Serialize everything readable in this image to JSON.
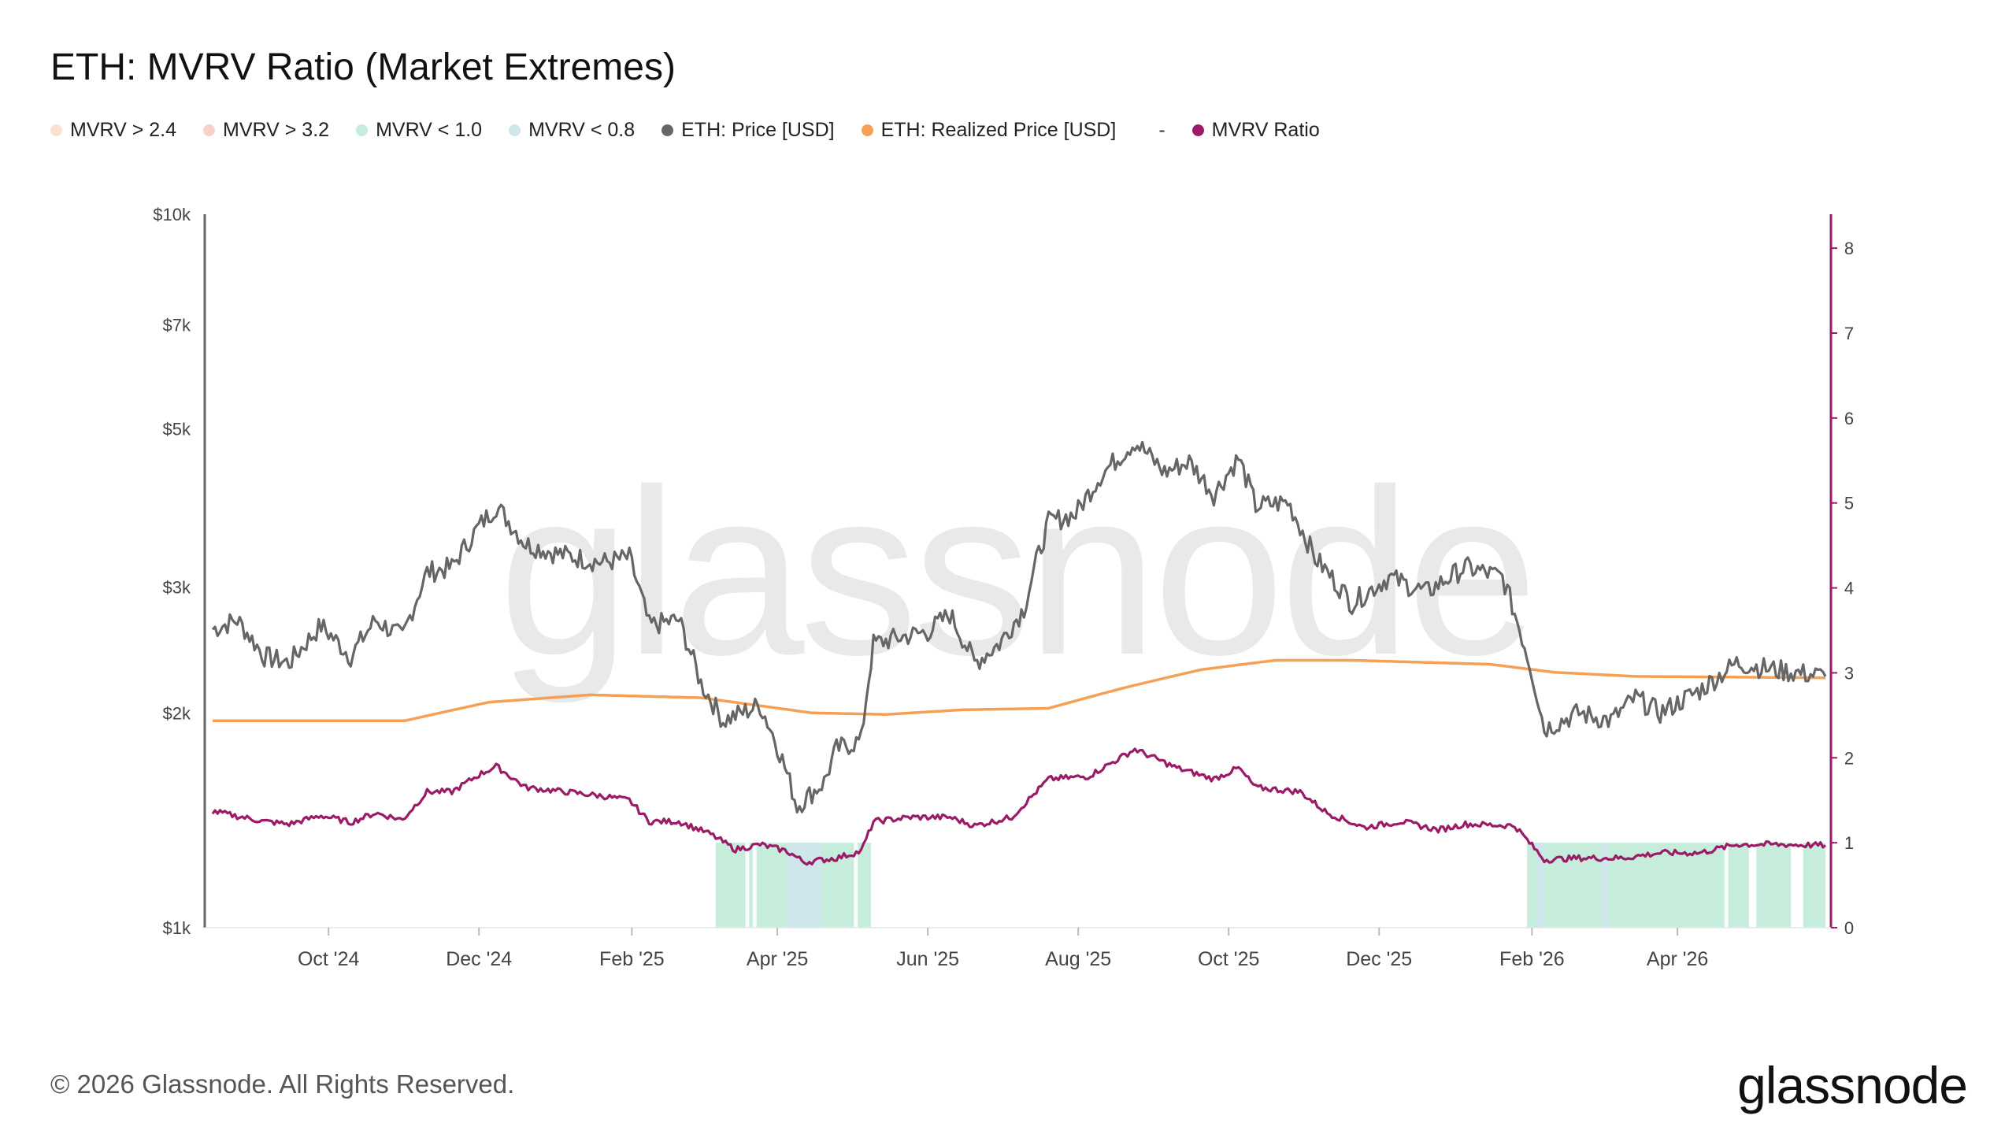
{
  "title": "ETH: MVRV Ratio (Market Extremes)",
  "footer": "© 2026 Glassnode. All Rights Reserved.",
  "brand": "glassnode",
  "watermark": "glassnode",
  "legend": [
    {
      "label": "MVRV > 2.4",
      "color": "#fbe1cf"
    },
    {
      "label": "MVRV > 3.2",
      "color": "#f8d2c8"
    },
    {
      "label": "MVRV < 1.0",
      "color": "#c6ecdc"
    },
    {
      "label": "MVRV < 0.8",
      "color": "#cfe6ea"
    },
    {
      "label": "ETH: Price [USD]",
      "color": "#666666"
    },
    {
      "label": "ETH: Realized Price [USD]",
      "color": "#f6a055"
    },
    {
      "label": "MVRV Ratio",
      "color": "#9b1b67",
      "separator": "-"
    }
  ],
  "chart_data": {
    "type": "line",
    "x_start": "2024-08-15",
    "x_end": "2026-05-31",
    "x_ticks": [
      "Oct '24",
      "Dec '24",
      "Feb '25",
      "Apr '25",
      "Jun '25",
      "Aug '25",
      "Oct '25",
      "Dec '25",
      "Feb '26",
      "Apr '26"
    ],
    "y_left": {
      "scale": "log",
      "range": [
        1000,
        10000
      ],
      "tick_labels": [
        "$1k",
        "$2k",
        "$3k",
        "$5k",
        "$7k",
        "$10k"
      ],
      "tick_values": [
        1000,
        2000,
        3000,
        5000,
        7000,
        10000
      ]
    },
    "y_right": {
      "scale": "linear",
      "range": [
        0,
        8.4
      ],
      "tick_labels": [
        "0",
        "1",
        "2",
        "3",
        "4",
        "5",
        "6",
        "7",
        "8"
      ]
    },
    "series": [
      {
        "name": "ETH: Price [USD]",
        "axis": "left",
        "color": "#666666",
        "points": [
          [
            "2024-08-15",
            2620
          ],
          [
            "2024-08-25",
            2700
          ],
          [
            "2024-09-05",
            2400
          ],
          [
            "2024-09-15",
            2350
          ],
          [
            "2024-09-28",
            2650
          ],
          [
            "2024-10-10",
            2400
          ],
          [
            "2024-10-20",
            2700
          ],
          [
            "2024-10-31",
            2550
          ],
          [
            "2024-11-10",
            3150
          ],
          [
            "2024-11-20",
            3200
          ],
          [
            "2024-12-01",
            3650
          ],
          [
            "2024-12-08",
            3900
          ],
          [
            "2024-12-20",
            3450
          ],
          [
            "2025-01-01",
            3350
          ],
          [
            "2025-01-10",
            3300
          ],
          [
            "2025-01-20",
            3250
          ],
          [
            "2025-01-31",
            3300
          ],
          [
            "2025-02-08",
            2650
          ],
          [
            "2025-02-20",
            2700
          ],
          [
            "2025-03-01",
            2200
          ],
          [
            "2025-03-10",
            1950
          ],
          [
            "2025-03-25",
            2050
          ],
          [
            "2025-04-01",
            1800
          ],
          [
            "2025-04-09",
            1480
          ],
          [
            "2025-04-20",
            1600
          ],
          [
            "2025-04-25",
            1780
          ],
          [
            "2025-05-05",
            1830
          ],
          [
            "2025-05-10",
            2500
          ],
          [
            "2025-05-20",
            2550
          ],
          [
            "2025-06-01",
            2600
          ],
          [
            "2025-06-10",
            2750
          ],
          [
            "2025-06-20",
            2350
          ],
          [
            "2025-06-30",
            2500
          ],
          [
            "2025-07-10",
            2800
          ],
          [
            "2025-07-20",
            3700
          ],
          [
            "2025-07-31",
            3800
          ],
          [
            "2025-08-10",
            4300
          ],
          [
            "2025-08-24",
            4800
          ],
          [
            "2025-09-05",
            4350
          ],
          [
            "2025-09-15",
            4500
          ],
          [
            "2025-09-25",
            4050
          ],
          [
            "2025-10-05",
            4550
          ],
          [
            "2025-10-12",
            3900
          ],
          [
            "2025-10-25",
            3950
          ],
          [
            "2025-11-05",
            3300
          ],
          [
            "2025-11-20",
            2850
          ],
          [
            "2025-12-05",
            3100
          ],
          [
            "2025-12-20",
            2950
          ],
          [
            "2026-01-05",
            3200
          ],
          [
            "2026-01-20",
            3100
          ],
          [
            "2026-01-31",
            2350
          ],
          [
            "2026-02-06",
            1900
          ],
          [
            "2026-02-20",
            2000
          ],
          [
            "2026-03-05",
            1950
          ],
          [
            "2026-03-15",
            2100
          ],
          [
            "2026-03-25",
            2000
          ],
          [
            "2026-04-10",
            2150
          ],
          [
            "2026-04-25",
            2350
          ],
          [
            "2026-05-10",
            2300
          ],
          [
            "2026-05-31",
            2250
          ]
        ]
      },
      {
        "name": "ETH: Realized Price [USD]",
        "axis": "left",
        "color": "#f6a055",
        "points": [
          [
            "2024-08-15",
            1950
          ],
          [
            "2024-11-01",
            1950
          ],
          [
            "2024-12-05",
            2070
          ],
          [
            "2025-01-15",
            2120
          ],
          [
            "2025-03-01",
            2100
          ],
          [
            "2025-04-15",
            2000
          ],
          [
            "2025-05-15",
            1990
          ],
          [
            "2025-06-15",
            2020
          ],
          [
            "2025-07-20",
            2030
          ],
          [
            "2025-08-20",
            2170
          ],
          [
            "2025-09-20",
            2300
          ],
          [
            "2025-10-20",
            2370
          ],
          [
            "2025-11-20",
            2370
          ],
          [
            "2026-01-15",
            2340
          ],
          [
            "2026-02-10",
            2280
          ],
          [
            "2026-03-15",
            2250
          ],
          [
            "2026-05-31",
            2240
          ]
        ]
      },
      {
        "name": "MVRV Ratio",
        "axis": "right",
        "color": "#9b1b67",
        "points": [
          [
            "2024-08-15",
            1.37
          ],
          [
            "2024-09-05",
            1.25
          ],
          [
            "2024-09-15",
            1.22
          ],
          [
            "2024-09-28",
            1.32
          ],
          [
            "2024-10-10",
            1.24
          ],
          [
            "2024-10-20",
            1.35
          ],
          [
            "2024-10-31",
            1.27
          ],
          [
            "2024-11-10",
            1.6
          ],
          [
            "2024-11-20",
            1.6
          ],
          [
            "2024-12-01",
            1.8
          ],
          [
            "2024-12-08",
            1.9
          ],
          [
            "2024-12-20",
            1.65
          ],
          [
            "2025-01-05",
            1.6
          ],
          [
            "2025-01-20",
            1.55
          ],
          [
            "2025-01-31",
            1.5
          ],
          [
            "2025-02-08",
            1.25
          ],
          [
            "2025-02-20",
            1.25
          ],
          [
            "2025-03-05",
            1.1
          ],
          [
            "2025-03-15",
            0.92
          ],
          [
            "2025-03-25",
            0.98
          ],
          [
            "2025-04-05",
            0.9
          ],
          [
            "2025-04-12",
            0.77
          ],
          [
            "2025-04-25",
            0.82
          ],
          [
            "2025-05-05",
            0.9
          ],
          [
            "2025-05-10",
            1.25
          ],
          [
            "2025-05-25",
            1.3
          ],
          [
            "2025-06-10",
            1.3
          ],
          [
            "2025-06-20",
            1.2
          ],
          [
            "2025-07-05",
            1.3
          ],
          [
            "2025-07-20",
            1.75
          ],
          [
            "2025-08-05",
            1.78
          ],
          [
            "2025-08-24",
            2.1
          ],
          [
            "2025-09-10",
            1.88
          ],
          [
            "2025-09-25",
            1.75
          ],
          [
            "2025-10-05",
            1.88
          ],
          [
            "2025-10-12",
            1.65
          ],
          [
            "2025-10-30",
            1.6
          ],
          [
            "2025-11-10",
            1.35
          ],
          [
            "2025-11-25",
            1.18
          ],
          [
            "2025-12-10",
            1.25
          ],
          [
            "2025-12-25",
            1.15
          ],
          [
            "2026-01-05",
            1.22
          ],
          [
            "2026-01-25",
            1.2
          ],
          [
            "2026-02-06",
            0.8
          ],
          [
            "2026-02-20",
            0.82
          ],
          [
            "2026-03-10",
            0.82
          ],
          [
            "2026-03-25",
            0.88
          ],
          [
            "2026-04-10",
            0.88
          ],
          [
            "2026-04-25",
            0.98
          ],
          [
            "2026-05-10",
            0.98
          ],
          [
            "2026-05-31",
            0.97
          ]
        ]
      }
    ],
    "bands": [
      {
        "name": "MVRV < 1.0",
        "color": "#c6ecdc",
        "from": "2025-03-07",
        "to": "2025-05-09"
      },
      {
        "name": "MVRV < 0.8",
        "color": "#cfe6ea",
        "from": "2025-04-05",
        "to": "2025-04-19"
      },
      {
        "name": "MVRV < 1.0",
        "color": "#c6ecdc",
        "from": "2026-01-30",
        "to": "2026-04-30"
      },
      {
        "name": "MVRV < 0.8",
        "color": "#cfe6ea",
        "from": "2026-02-03",
        "to": "2026-02-06"
      },
      {
        "name": "MVRV < 0.8",
        "color": "#cfe6ea",
        "from": "2026-03-01",
        "to": "2026-03-04"
      },
      {
        "name": "MVRV < 1.0",
        "color": "#c6ecdc",
        "from": "2026-05-03",
        "to": "2026-05-17"
      },
      {
        "name": "MVRV < 1.0",
        "color": "#c6ecdc",
        "from": "2026-05-22",
        "to": "2026-05-31"
      }
    ]
  }
}
